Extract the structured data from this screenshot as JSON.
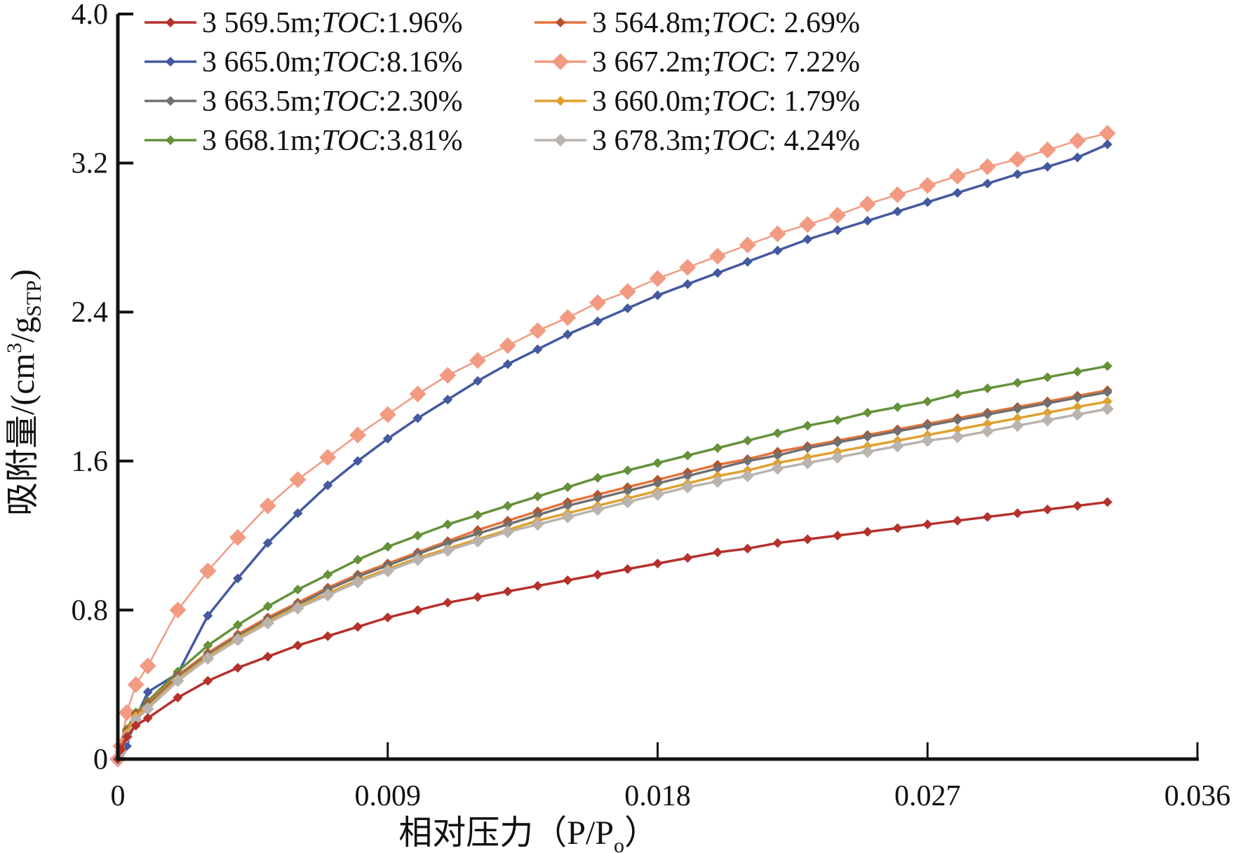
{
  "chart_data": {
    "type": "line",
    "title": "",
    "xlabel": "相对压力（P/P",
    "xlabel_sub": "o",
    "xlabel_close": "）",
    "ylabel": "吸附量/(cm",
    "ylabel_sup": "3",
    "ylabel_mid": "/g",
    "ylabel_sub": "STP",
    "ylabel_close": ")",
    "xlim": [
      0,
      0.036
    ],
    "ylim": [
      0,
      4.0
    ],
    "x_ticks": [
      0,
      0.009,
      0.018,
      0.027,
      0.036
    ],
    "x_tick_labels": [
      "0",
      "0.009",
      "0.018",
      "0.027",
      "0.036"
    ],
    "y_ticks": [
      0,
      0.8,
      1.6,
      2.4,
      3.2,
      4.0
    ],
    "y_tick_labels": [
      "0",
      "0.8",
      "1.6",
      "2.4",
      "3.2",
      "4.0"
    ],
    "grid": false,
    "legend_position": "top-left",
    "x": [
      0,
      0.0001,
      0.0003,
      0.0006,
      0.001,
      0.002,
      0.003,
      0.004,
      0.005,
      0.006,
      0.007,
      0.008,
      0.009,
      0.01,
      0.011,
      0.012,
      0.013,
      0.014,
      0.015,
      0.016,
      0.017,
      0.018,
      0.019,
      0.02,
      0.021,
      0.022,
      0.023,
      0.024,
      0.025,
      0.026,
      0.027,
      0.028,
      0.029,
      0.03,
      0.031,
      0.032,
      0.033
    ],
    "series": [
      {
        "name_depth": "3 569.5m;",
        "name_toc_label": "TOC",
        "name_toc_value": ":1.96%",
        "color": "#b5312b",
        "marker_size": "small",
        "values": [
          0,
          0.05,
          0.12,
          0.18,
          0.22,
          0.33,
          0.42,
          0.49,
          0.55,
          0.61,
          0.66,
          0.71,
          0.76,
          0.8,
          0.84,
          0.87,
          0.9,
          0.93,
          0.96,
          0.99,
          1.02,
          1.05,
          1.08,
          1.11,
          1.13,
          1.16,
          1.18,
          1.2,
          1.22,
          1.24,
          1.26,
          1.28,
          1.3,
          1.32,
          1.34,
          1.36,
          1.38
        ]
      },
      {
        "name_depth": "3 564.8m;",
        "name_toc_label": "TOC",
        "name_toc_value": ": 2.69%",
        "color": "#e5733a",
        "marker_color": "#b5532b",
        "marker_size": "small",
        "values": [
          0,
          0.06,
          0.15,
          0.24,
          0.3,
          0.45,
          0.57,
          0.67,
          0.76,
          0.84,
          0.92,
          0.99,
          1.05,
          1.11,
          1.17,
          1.23,
          1.28,
          1.33,
          1.38,
          1.42,
          1.46,
          1.5,
          1.54,
          1.58,
          1.61,
          1.65,
          1.68,
          1.71,
          1.74,
          1.77,
          1.8,
          1.83,
          1.86,
          1.89,
          1.92,
          1.95,
          1.98
        ]
      },
      {
        "name_depth": "3 665.0m;",
        "name_toc_label": "TOC",
        "name_toc_value": ":8.16%",
        "color": "#4459a0",
        "marker_size": "small",
        "values": [
          0,
          0.03,
          0.07,
          0.22,
          0.36,
          0.46,
          0.77,
          0.97,
          1.16,
          1.32,
          1.47,
          1.6,
          1.72,
          1.83,
          1.93,
          2.03,
          2.12,
          2.2,
          2.28,
          2.35,
          2.42,
          2.49,
          2.55,
          2.61,
          2.67,
          2.73,
          2.79,
          2.84,
          2.89,
          2.94,
          2.99,
          3.04,
          3.09,
          3.14,
          3.18,
          3.23,
          3.3
        ]
      },
      {
        "name_depth": "3 667.2m;",
        "name_toc_label": "TOC",
        "name_toc_value": ": 7.22%",
        "color": "#f29a82",
        "marker_size": "large",
        "values": [
          0,
          0.07,
          0.25,
          0.4,
          0.5,
          0.8,
          1.01,
          1.19,
          1.36,
          1.5,
          1.62,
          1.74,
          1.85,
          1.96,
          2.06,
          2.14,
          2.22,
          2.3,
          2.37,
          2.45,
          2.51,
          2.58,
          2.64,
          2.7,
          2.76,
          2.82,
          2.87,
          2.92,
          2.98,
          3.03,
          3.08,
          3.13,
          3.18,
          3.22,
          3.27,
          3.32,
          3.36
        ]
      },
      {
        "name_depth": "3 663.5m;",
        "name_toc_label": "TOC",
        "name_toc_value": ":2.30%",
        "color": "#707070",
        "marker_size": "small",
        "values": [
          0,
          0.05,
          0.14,
          0.23,
          0.29,
          0.44,
          0.56,
          0.66,
          0.75,
          0.83,
          0.91,
          0.98,
          1.04,
          1.1,
          1.16,
          1.21,
          1.26,
          1.31,
          1.36,
          1.4,
          1.44,
          1.48,
          1.52,
          1.56,
          1.6,
          1.63,
          1.67,
          1.7,
          1.73,
          1.76,
          1.79,
          1.82,
          1.85,
          1.88,
          1.91,
          1.94,
          1.97
        ]
      },
      {
        "name_depth": "3 660.0m;",
        "name_toc_label": "TOC",
        "name_toc_value": ": 1.79%",
        "color": "#e0a030",
        "marker_size": "small",
        "values": [
          0,
          0.05,
          0.14,
          0.23,
          0.28,
          0.43,
          0.55,
          0.65,
          0.74,
          0.82,
          0.89,
          0.96,
          1.02,
          1.08,
          1.13,
          1.18,
          1.23,
          1.28,
          1.32,
          1.36,
          1.4,
          1.44,
          1.48,
          1.52,
          1.55,
          1.59,
          1.62,
          1.65,
          1.68,
          1.71,
          1.74,
          1.77,
          1.8,
          1.83,
          1.86,
          1.89,
          1.92
        ]
      },
      {
        "name_depth": "3 668.1m;",
        "name_toc_label": "TOC",
        "name_toc_value": ":3.81%",
        "color": "#64913a",
        "marker_size": "small",
        "values": [
          0,
          0.06,
          0.16,
          0.25,
          0.31,
          0.47,
          0.61,
          0.72,
          0.82,
          0.91,
          0.99,
          1.07,
          1.14,
          1.2,
          1.26,
          1.31,
          1.36,
          1.41,
          1.46,
          1.51,
          1.55,
          1.59,
          1.63,
          1.67,
          1.71,
          1.75,
          1.79,
          1.82,
          1.86,
          1.89,
          1.92,
          1.96,
          1.99,
          2.02,
          2.05,
          2.08,
          2.11
        ]
      },
      {
        "name_depth": "3 678.3m;",
        "name_toc_label": "TOC",
        "name_toc_value": ": 4.24%",
        "color": "#bab3ae",
        "marker_size": "medium",
        "values": [
          0,
          0.04,
          0.12,
          0.21,
          0.27,
          0.42,
          0.54,
          0.64,
          0.73,
          0.81,
          0.88,
          0.95,
          1.01,
          1.07,
          1.12,
          1.17,
          1.22,
          1.26,
          1.3,
          1.34,
          1.38,
          1.42,
          1.46,
          1.49,
          1.52,
          1.56,
          1.59,
          1.62,
          1.65,
          1.68,
          1.71,
          1.73,
          1.76,
          1.79,
          1.82,
          1.85,
          1.88
        ]
      }
    ]
  }
}
